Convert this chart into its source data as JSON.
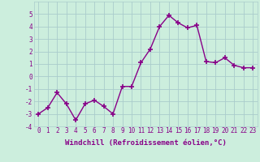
{
  "x": [
    0,
    1,
    2,
    3,
    4,
    5,
    6,
    7,
    8,
    9,
    10,
    11,
    12,
    13,
    14,
    15,
    16,
    17,
    18,
    19,
    20,
    21,
    22,
    23
  ],
  "y": [
    -3,
    -2.5,
    -1.3,
    -2.2,
    -3.5,
    -2.2,
    -1.9,
    -2.4,
    -3.0,
    -0.8,
    -0.8,
    1.1,
    2.2,
    4.0,
    4.9,
    4.3,
    3.9,
    4.1,
    1.2,
    1.1,
    1.5,
    0.9,
    0.7,
    0.7
  ],
  "line_color": "#880088",
  "marker": "+",
  "marker_size": 4,
  "bg_color": "#cceedd",
  "grid_color": "#aacccc",
  "xlabel": "Windchill (Refroidissement éolien,°C)",
  "ylim": [
    -4,
    6
  ],
  "xlim": [
    -0.5,
    23.5
  ],
  "yticks": [
    -4,
    -3,
    -2,
    -1,
    0,
    1,
    2,
    3,
    4,
    5
  ],
  "xticks": [
    0,
    1,
    2,
    3,
    4,
    5,
    6,
    7,
    8,
    9,
    10,
    11,
    12,
    13,
    14,
    15,
    16,
    17,
    18,
    19,
    20,
    21,
    22,
    23
  ],
  "tick_fontsize": 5.5,
  "xlabel_fontsize": 6.5,
  "line_width": 1.0
}
